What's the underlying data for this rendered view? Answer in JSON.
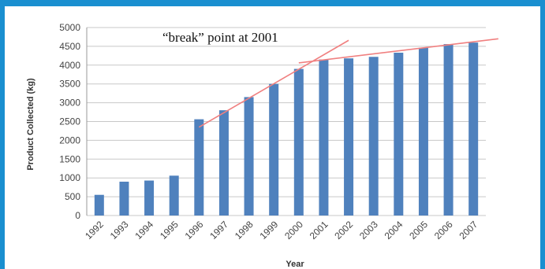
{
  "chart_data": {
    "type": "bar",
    "title": "",
    "xlabel": "Year",
    "ylabel": "Product Collected (kg)",
    "categories": [
      "1992",
      "1993",
      "1994",
      "1995",
      "1996",
      "1997",
      "1998",
      "1999",
      "2000",
      "2001",
      "2002",
      "2003",
      "2004",
      "2005",
      "2006",
      "2007"
    ],
    "series": [
      {
        "values": [
          550,
          900,
          930,
          1060,
          2560,
          2800,
          3150,
          3500,
          3900,
          4150,
          4180,
          4220,
          4330,
          4460,
          4560,
          4600
        ]
      }
    ],
    "ylim": [
      0,
      5000
    ],
    "yticks": [
      "0",
      "500",
      "1000",
      "1500",
      "2000",
      "2500",
      "3000",
      "3500",
      "4000",
      "4500",
      "5000"
    ],
    "grid": true,
    "legend": "none",
    "annotation": "“break” point at 2001",
    "trend_lines": [
      {
        "from": [
          1996,
          2350
        ],
        "to": [
          2002,
          4660
        ]
      },
      {
        "from": [
          2000,
          4060
        ],
        "to": [
          2008,
          4700
        ]
      }
    ],
    "colors": {
      "bar": "#4f81bd",
      "trend": "#f08080",
      "grid": "#c8c8c8",
      "frame": "#1a8fd0"
    }
  }
}
